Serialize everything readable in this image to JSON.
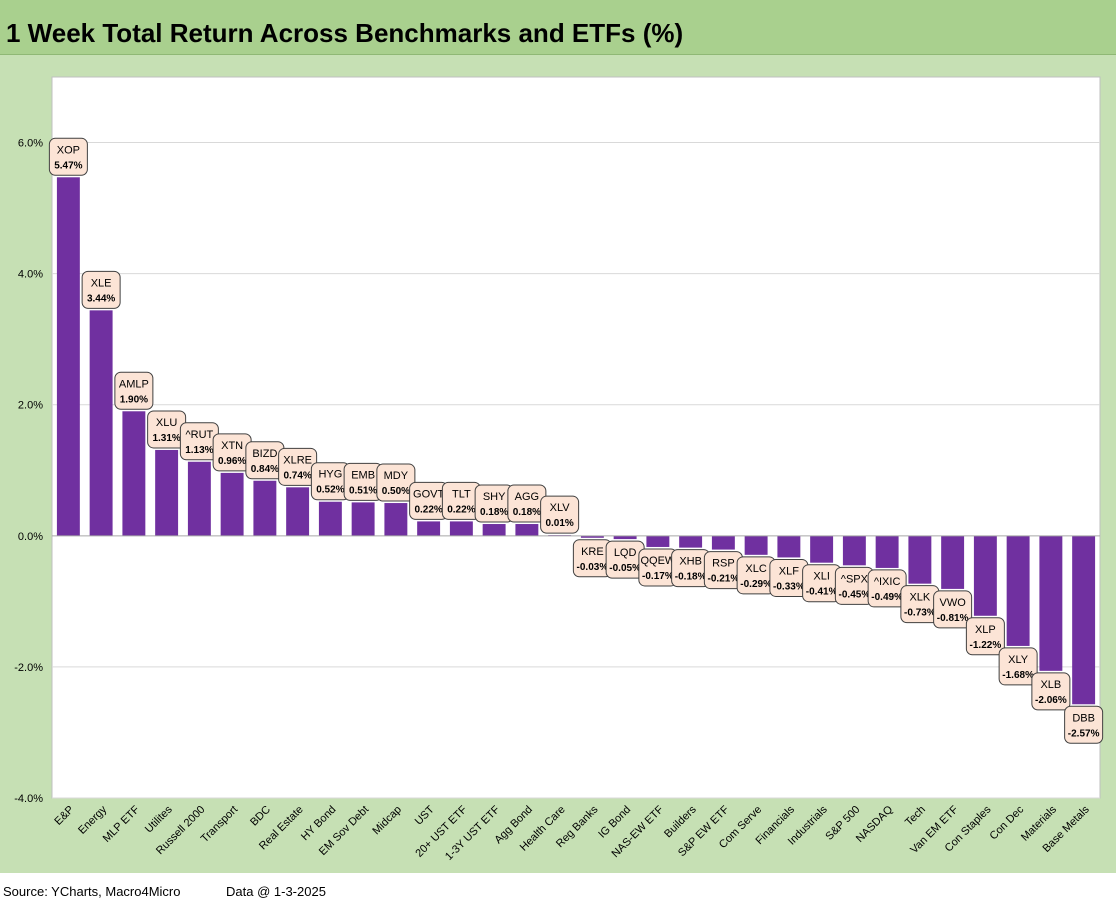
{
  "title": "1 Week Total Return Across Benchmarks and ETFs (%)",
  "footer": {
    "source": "Source: YCharts, Macro4Micro",
    "data_date": "Data @ 1-3-2025"
  },
  "colors": {
    "title_bg": "#a9d08e",
    "chart_bg": "#c6e0b4",
    "plot_bg": "#ffffff",
    "bar": "#7030a0",
    "label_bg": "#fce4d6"
  },
  "chart_data": {
    "type": "bar",
    "title": "1 Week Total Return Across Benchmarks and ETFs (%)",
    "xlabel": "",
    "ylabel": "",
    "ylim": [
      -4.0,
      7.0
    ],
    "yticks": [
      -4.0,
      -2.0,
      0.0,
      2.0,
      4.0,
      6.0
    ],
    "ytick_labels": [
      "-4.0%",
      "-2.0%",
      "0.0%",
      "2.0%",
      "4.0%",
      "6.0%"
    ],
    "grid": true,
    "categories": [
      "E&P",
      "Energy",
      "MLP ETF",
      "Utilites",
      "Russell 2000",
      "Transport",
      "BDC",
      "Real Estate",
      "HY Bond",
      "EM Sov Debt",
      "Midcap",
      "UST",
      "20+ UST ETF",
      "1-3Y UST ETF",
      "Agg Bond",
      "Health Care",
      "Reg Banks",
      "IG Bond",
      "NAS-EW ETF",
      "Builders",
      "S&P EW ETF",
      "Com Serve",
      "Financials",
      "Industrials",
      "S&P 500",
      "NASDAQ",
      "Tech",
      "Van EM ETF",
      "Con Staples",
      "Con Dec",
      "Materials",
      "Base Metals"
    ],
    "tickers": [
      "XOP",
      "XLE",
      "AMLP",
      "XLU",
      "^RUT",
      "XTN",
      "BIZD",
      "XLRE",
      "HYG",
      "EMB",
      "MDY",
      "GOVT",
      "TLT",
      "SHY",
      "AGG",
      "XLV",
      "KRE",
      "LQD",
      "QQEW",
      "XHB",
      "RSP",
      "XLC",
      "XLF",
      "XLI",
      "^SPX",
      "^IXIC",
      "XLK",
      "VWO",
      "XLP",
      "XLY",
      "XLB",
      "DBB"
    ],
    "values": [
      5.47,
      3.44,
      1.9,
      1.31,
      1.13,
      0.96,
      0.84,
      0.74,
      0.52,
      0.51,
      0.5,
      0.22,
      0.22,
      0.18,
      0.18,
      0.01,
      -0.03,
      -0.05,
      -0.17,
      -0.18,
      -0.21,
      -0.29,
      -0.33,
      -0.41,
      -0.45,
      -0.49,
      -0.73,
      -0.81,
      -1.22,
      -1.68,
      -2.06,
      -2.57
    ],
    "value_labels": [
      "5.47%",
      "3.44%",
      "1.90%",
      "1.31%",
      "1.13%",
      "0.96%",
      "0.84%",
      "0.74%",
      "0.52%",
      "0.51%",
      "0.50%",
      "0.22%",
      "0.22%",
      "0.18%",
      "0.18%",
      "0.01%",
      "-0.03%",
      "-0.05%",
      "-0.17%",
      "-0.18%",
      "-0.21%",
      "-0.29%",
      "-0.33%",
      "-0.41%",
      "-0.45%",
      "-0.49%",
      "-0.73%",
      "-0.81%",
      "-1.22%",
      "-1.68%",
      "-2.06%",
      "-2.57%"
    ]
  }
}
